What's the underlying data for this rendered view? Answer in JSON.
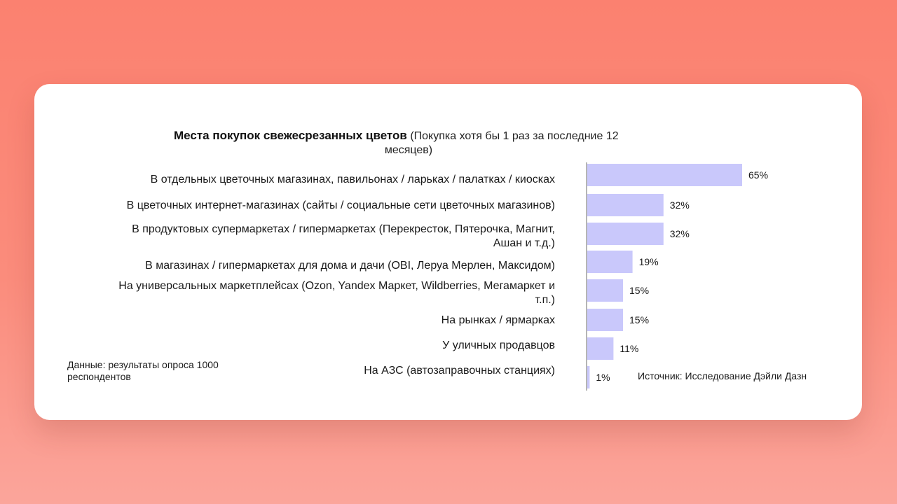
{
  "title": "Места покупок свежесрезанных цветов",
  "subtitle_line1": "(Покупка хотя бы 1 раз за последние 12",
  "subtitle_line2": "месяцев)",
  "note_left": "Данные: результаты опроса 1000 респондентов",
  "note_right": "Источник: Исследование Дэйли Дазн",
  "colors": {
    "bar": "#c9c8fb",
    "axis": "#b5b5b5",
    "background_top": "#fb8170",
    "card": "#ffffff"
  },
  "chart_data": {
    "type": "bar",
    "orientation": "horizontal",
    "categories": [
      "В отдельных цветочных магазинах,  павильонах / ларьках / палатках / киосках",
      "В цветочных интернет-магазинах (сайты / социальные сети цветочных магазинов)",
      "В продуктовых супермаркетах / гипермаркетах (Перекресток, Пятерочка, Магнит, Ашан и т.д.)",
      "В магазинах / гипермаркетах для дома и дачи (OBI, Леруа Мерлен, Максидом)",
      "На универсальных маркетплейсах (Ozon, Yandex Маркет, Wildberries, Мегамаркет и т.п.)",
      "На рынках / ярмарках",
      "У уличных продавцов",
      "На АЗС (автозаправочных станциях)"
    ],
    "category_lines": [
      [
        "В отдельных цветочных магазинах,  павильонах / ларьках / палатках / киосках"
      ],
      [
        "В цветочных интернет-магазинах (сайты / социальные сети цветочных магазинов)"
      ],
      [
        "В продуктовых супермаркетах / гипермаркетах (Перекресток, Пятерочка, Магнит,",
        "Ашан и т.д.)"
      ],
      [
        "В магазинах / гипермаркетах для дома и дачи (OBI, Леруа Мерлен, Максидом)"
      ],
      [
        "На универсальных маркетплейсах (Ozon, Yandex Маркет, Wildberries, Мегамаркет и",
        "т.п.)"
      ],
      [
        "На рынках / ярмарках"
      ],
      [
        "У уличных продавцов"
      ],
      [
        "На АЗС (автозаправочных станциях)"
      ]
    ],
    "values": [
      65,
      32,
      32,
      19,
      15,
      15,
      11,
      1
    ],
    "value_labels": [
      "65%",
      "32%",
      "32%",
      "19%",
      "15%",
      "15%",
      "11%",
      "1%"
    ],
    "unit": "%",
    "xlim": [
      0,
      100
    ],
    "grid": false,
    "legend": "none"
  }
}
